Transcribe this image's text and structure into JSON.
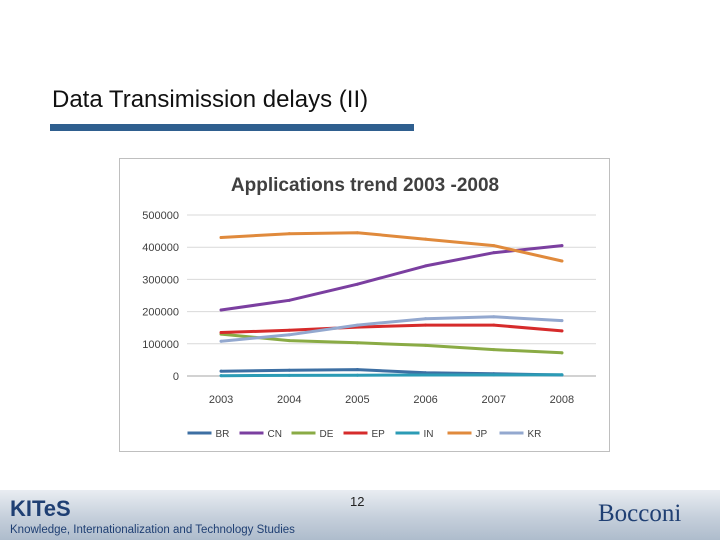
{
  "slide": {
    "title": "Data Transimission delays (II)",
    "page_number": "12",
    "footer_logo": "KITeS",
    "footer_subtitle": "Knowledge, Internationalization and Technology Studies",
    "footer_brand": "Bocconi",
    "accent_color": "#2f5f8f"
  },
  "chart_data": {
    "type": "line",
    "title": "Applications trend 2003 -2008",
    "xlabel": "",
    "ylabel": "",
    "x": [
      "2003",
      "2004",
      "2005",
      "2006",
      "2007",
      "2008"
    ],
    "ylim": [
      0,
      500000
    ],
    "yticks": [
      0,
      100000,
      200000,
      300000,
      400000,
      500000
    ],
    "ytick_labels": [
      "0",
      "100000",
      "200000",
      "300000",
      "400000",
      "500000"
    ],
    "grid": true,
    "legend": "bottom",
    "series": [
      {
        "name": "BR",
        "color": "#3d6fa3",
        "values": [
          15000,
          18000,
          20000,
          10000,
          7000,
          3000
        ]
      },
      {
        "name": "CN",
        "color": "#7b3fa0",
        "values": [
          205000,
          235000,
          285000,
          342000,
          383000,
          405000
        ]
      },
      {
        "name": "DE",
        "color": "#8aab45",
        "values": [
          130000,
          110000,
          103000,
          95000,
          82000,
          72000
        ]
      },
      {
        "name": "EP",
        "color": "#d62b2b",
        "values": [
          135000,
          142000,
          152000,
          158000,
          158000,
          140000
        ]
      },
      {
        "name": "IN",
        "color": "#2b9bb5",
        "values": [
          1000,
          2000,
          2500,
          3000,
          3500,
          4000
        ]
      },
      {
        "name": "JP",
        "color": "#e08a3c",
        "values": [
          430000,
          442000,
          445000,
          425000,
          405000,
          357000
        ]
      },
      {
        "name": "KR",
        "color": "#93a8cf",
        "values": [
          108000,
          128000,
          158000,
          178000,
          184000,
          172000
        ]
      }
    ]
  }
}
